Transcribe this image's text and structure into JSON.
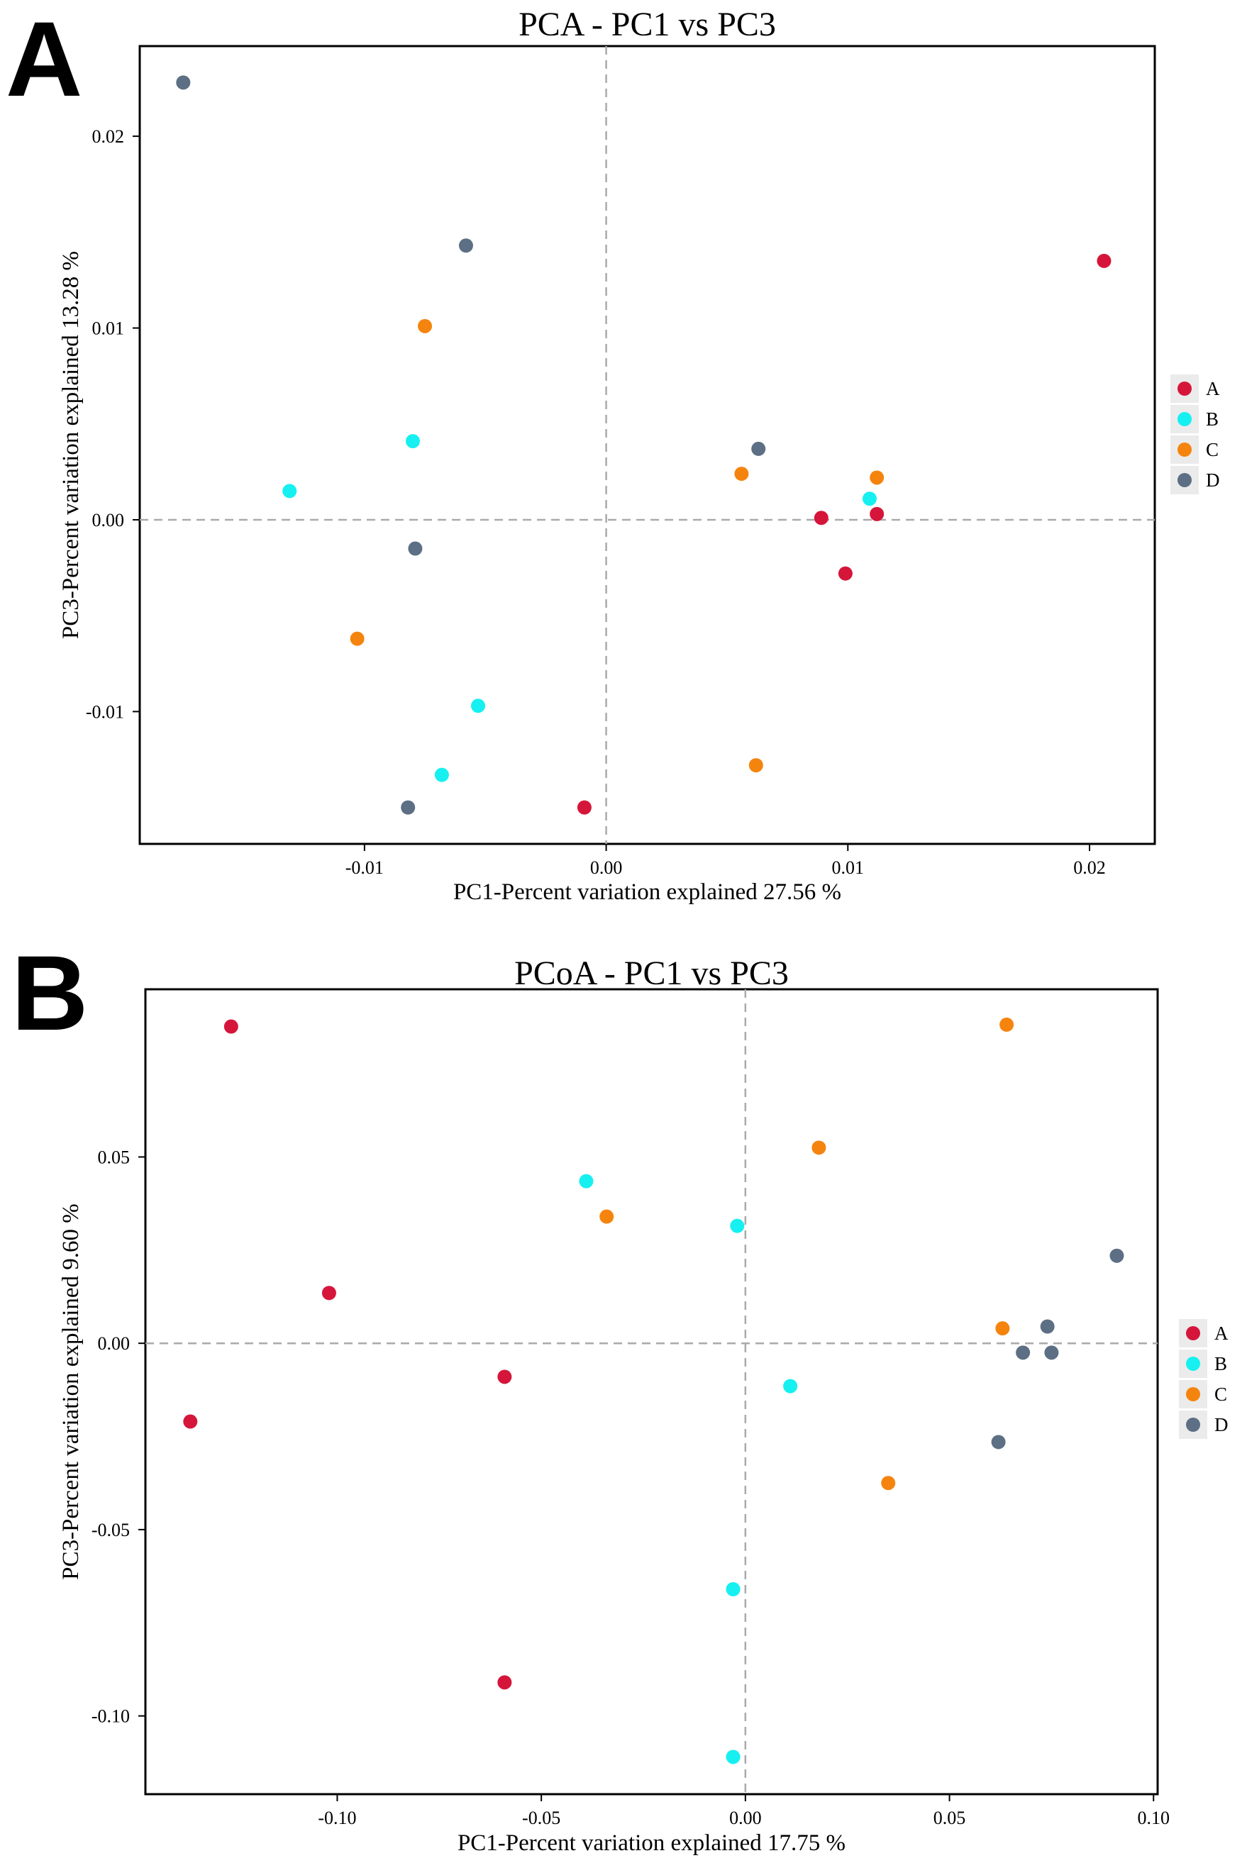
{
  "colors": {
    "A": "#d5163a",
    "B": "#16f0f0",
    "C": "#f5840f",
    "D": "#5c6f84"
  },
  "chart_data": [
    {
      "panel": "A",
      "type": "scatter",
      "title": "PCA - PC1 vs PC3",
      "xlabel": "PC1-Percent variation explained 27.56 %",
      "ylabel": "PC3-Percent variation explained 13.28 %",
      "xlim": [
        -0.0193,
        0.0227
      ],
      "ylim": [
        -0.0169,
        0.0247
      ],
      "xticks": [
        -0.01,
        0.0,
        0.01,
        0.02
      ],
      "xtick_labels": [
        "-0.01",
        "0.00",
        "0.01",
        "0.02"
      ],
      "yticks": [
        -0.01,
        0.0,
        0.01,
        0.02
      ],
      "ytick_labels": [
        "-0.01",
        "0.00",
        "0.01",
        "0.02"
      ],
      "reference_lines": {
        "x": 0,
        "y": 0,
        "style": "dashed"
      },
      "legend": [
        "A",
        "B",
        "C",
        "D"
      ],
      "legend_position": "right",
      "series": [
        {
          "name": "A",
          "points": [
            [
              0.0206,
              0.0135
            ],
            [
              0.0089,
              0.0001
            ],
            [
              0.0112,
              0.0003
            ],
            [
              0.0099,
              -0.0028
            ],
            [
              -0.0009,
              -0.015
            ]
          ]
        },
        {
          "name": "B",
          "points": [
            [
              -0.0131,
              0.0015
            ],
            [
              -0.008,
              0.0041
            ],
            [
              0.0109,
              0.0011
            ],
            [
              -0.0053,
              -0.0097
            ],
            [
              -0.0068,
              -0.0133
            ]
          ]
        },
        {
          "name": "C",
          "points": [
            [
              -0.0075,
              0.0101
            ],
            [
              0.0056,
              0.0024
            ],
            [
              0.0112,
              0.0022
            ],
            [
              -0.0103,
              -0.0062
            ],
            [
              0.0062,
              -0.0128
            ]
          ]
        },
        {
          "name": "D",
          "points": [
            [
              -0.0175,
              0.0228
            ],
            [
              -0.0058,
              0.0143
            ],
            [
              0.0063,
              0.0037
            ],
            [
              -0.0079,
              -0.0015
            ],
            [
              -0.0082,
              -0.015
            ]
          ]
        }
      ]
    },
    {
      "panel": "B",
      "type": "scatter",
      "title": "PCoA - PC1 vs PC3",
      "xlabel": "PC1-Percent variation explained 17.75 %",
      "ylabel": "PC3-Percent variation explained 9.60 %",
      "xlim": [
        -0.147,
        0.101
      ],
      "ylim": [
        -0.121,
        0.095
      ],
      "xticks": [
        -0.1,
        -0.05,
        0.0,
        0.05,
        0.1
      ],
      "xtick_labels": [
        "-0.10",
        "-0.05",
        "0.00",
        "0.05",
        "0.10"
      ],
      "yticks": [
        -0.1,
        -0.05,
        0.0,
        0.05
      ],
      "ytick_labels": [
        "-0.10",
        "-0.05",
        "0.00",
        "0.05"
      ],
      "reference_lines": {
        "x": 0,
        "y": 0,
        "style": "dashed"
      },
      "legend": [
        "A",
        "B",
        "C",
        "D"
      ],
      "legend_position": "right",
      "series": [
        {
          "name": "A",
          "points": [
            [
              -0.126,
              0.085
            ],
            [
              -0.102,
              0.0135
            ],
            [
              -0.059,
              -0.009
            ],
            [
              -0.136,
              -0.021
            ],
            [
              -0.059,
              -0.091
            ]
          ]
        },
        {
          "name": "B",
          "points": [
            [
              -0.039,
              0.0435
            ],
            [
              -0.002,
              0.0315
            ],
            [
              0.011,
              -0.0115
            ],
            [
              -0.003,
              -0.066
            ],
            [
              -0.003,
              -0.111
            ]
          ]
        },
        {
          "name": "C",
          "points": [
            [
              0.064,
              0.0855
            ],
            [
              0.018,
              0.0525
            ],
            [
              -0.034,
              0.034
            ],
            [
              0.063,
              0.004
            ],
            [
              0.035,
              -0.0375
            ]
          ]
        },
        {
          "name": "D",
          "points": [
            [
              0.091,
              0.0235
            ],
            [
              0.074,
              0.0045
            ],
            [
              0.068,
              -0.0025
            ],
            [
              0.075,
              -0.0025
            ],
            [
              0.062,
              -0.0265
            ]
          ]
        }
      ]
    }
  ]
}
